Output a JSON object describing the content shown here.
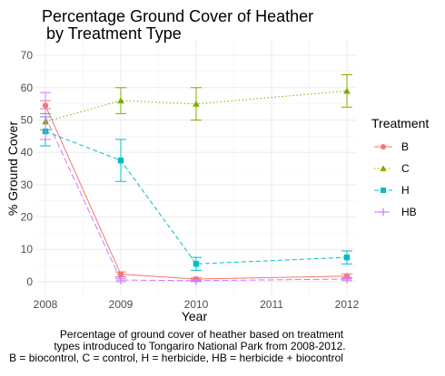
{
  "chart_data": {
    "type": "line",
    "title_lines": [
      "Percentage Ground Cover of Heather",
      " by Treatment Type"
    ],
    "xlabel": "Year",
    "ylabel": "% Ground Cover",
    "x_ticks": [
      2008,
      2009,
      2010,
      2011,
      2012
    ],
    "x_tick_labels": [
      "2008",
      "2009",
      "2010",
      "2011",
      "2012"
    ],
    "y_ticks": [
      0,
      10,
      20,
      30,
      40,
      50,
      60,
      70
    ],
    "y_tick_labels": [
      "0",
      "10",
      "20",
      "30",
      "40",
      "50",
      "60",
      "70"
    ],
    "xlim": [
      2008,
      2012
    ],
    "ylim": [
      -2,
      72
    ],
    "grid": true,
    "legend": {
      "title": "Treatment",
      "position": "right"
    },
    "series": [
      {
        "name": "B",
        "color": "#F8766D",
        "marker": "circle",
        "dash": "solid",
        "x": [
          2008,
          2009,
          2010,
          2012
        ],
        "y": [
          54.5,
          2.3,
          0.8,
          1.7
        ],
        "err_low": [
          53.5,
          1.5,
          0.3,
          1.0
        ],
        "err_high": [
          56.0,
          3.0,
          1.3,
          2.4
        ]
      },
      {
        "name": "C",
        "color": "#7CAE00",
        "marker": "triangle",
        "dash": "dotted",
        "x": [
          2008,
          2009,
          2010,
          2012
        ],
        "y": [
          49.5,
          56.0,
          55.0,
          59.0
        ],
        "err_low": [
          47.0,
          52.0,
          50.0,
          54.0
        ],
        "err_high": [
          52.0,
          60.0,
          60.0,
          64.0
        ]
      },
      {
        "name": "H",
        "color": "#00BFC4",
        "marker": "square",
        "dash": "dashed",
        "x": [
          2008,
          2009,
          2010,
          2012
        ],
        "y": [
          46.5,
          37.5,
          5.5,
          7.5
        ],
        "err_low": [
          42.0,
          31.0,
          3.5,
          5.5
        ],
        "err_high": [
          51.0,
          44.0,
          7.5,
          9.5
        ]
      },
      {
        "name": "HB",
        "color": "#C77CFF",
        "marker": "plus",
        "dash": "longdash",
        "x": [
          2008,
          2009,
          2010,
          2012
        ],
        "y": [
          51.0,
          0.5,
          0.3,
          0.8
        ],
        "err_low": [
          44.0,
          0.0,
          0.0,
          0.3
        ],
        "err_high": [
          58.5,
          1.0,
          0.6,
          1.3
        ]
      }
    ],
    "caption_lines": [
      "Percentage of ground cover of heather based on treatment",
      "types introduced to Tongariro National Park from 2008-2012.",
      "B = biocontrol, C = control, H = herbicide, HB = herbicide + biocontrol"
    ]
  }
}
